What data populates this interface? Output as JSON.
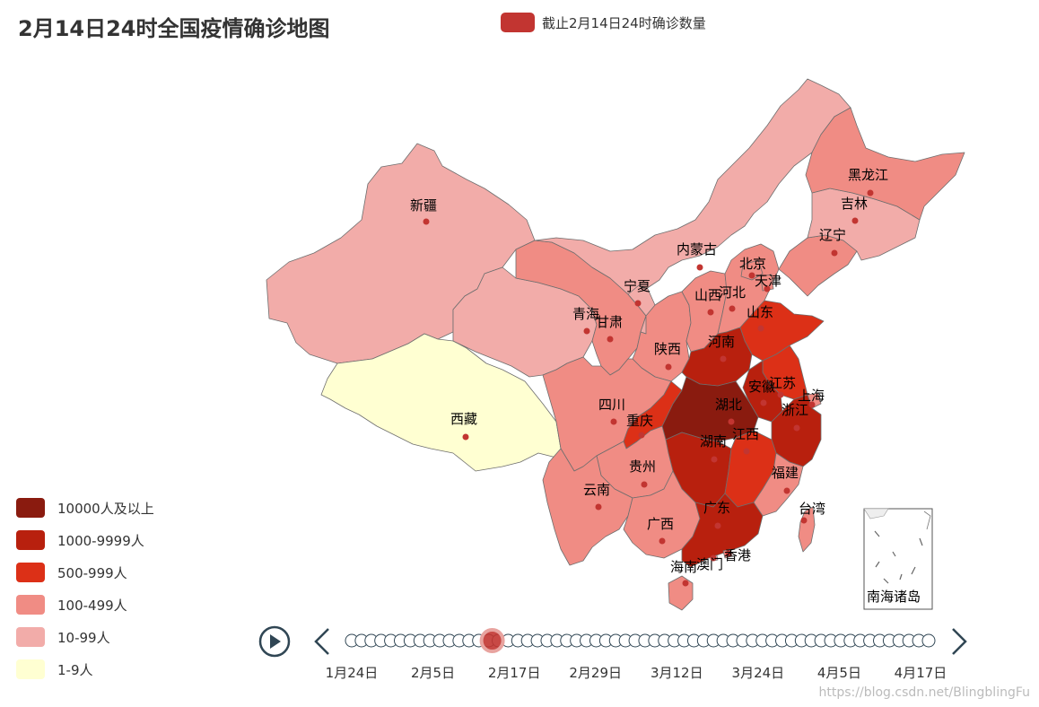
{
  "title": "2月14日24时全国疫情确诊地图",
  "series_legend": {
    "label": "截止2月14日24时确诊数量",
    "color": "#c23531"
  },
  "visual_map": [
    {
      "label": "10000人及以上",
      "color": "#8a1b0f"
    },
    {
      "label": "1000-9999人",
      "color": "#b8200e"
    },
    {
      "label": "500-999人",
      "color": "#dc3017"
    },
    {
      "label": "100-499人",
      "color": "#f08c84"
    },
    {
      "label": "10-99人",
      "color": "#f2aca9"
    },
    {
      "label": "1-9人",
      "color": "#ffffd2"
    }
  ],
  "provinces": [
    {
      "id": "xinjiang",
      "name": "新疆",
      "level": 4
    },
    {
      "id": "xizang",
      "name": "西藏",
      "level": 5
    },
    {
      "id": "qinghai",
      "name": "青海",
      "level": 4
    },
    {
      "id": "gansu",
      "name": "甘肃",
      "level": 3
    },
    {
      "id": "neimenggu",
      "name": "内蒙古",
      "level": 4
    },
    {
      "id": "ningxia",
      "name": "宁夏",
      "level": 4
    },
    {
      "id": "shaanxi",
      "name": "陕西",
      "level": 3
    },
    {
      "id": "shanxi",
      "name": "山西",
      "level": 3
    },
    {
      "id": "hebei",
      "name": "河北",
      "level": 3
    },
    {
      "id": "beijing",
      "name": "北京",
      "level": 3
    },
    {
      "id": "tianjin",
      "name": "天津",
      "level": 3
    },
    {
      "id": "liaoning",
      "name": "辽宁",
      "level": 3
    },
    {
      "id": "jilin",
      "name": "吉林",
      "level": 4
    },
    {
      "id": "heilongjiang",
      "name": "黑龙江",
      "level": 3
    },
    {
      "id": "shandong",
      "name": "山东",
      "level": 2
    },
    {
      "id": "henan",
      "name": "河南",
      "level": 1
    },
    {
      "id": "jiangsu",
      "name": "江苏",
      "level": 2
    },
    {
      "id": "anhui",
      "name": "安徽",
      "level": 1
    },
    {
      "id": "shanghai",
      "name": "上海",
      "level": 3
    },
    {
      "id": "zhejiang",
      "name": "浙江",
      "level": 1
    },
    {
      "id": "hubei",
      "name": "湖北",
      "level": 0
    },
    {
      "id": "sichuan",
      "name": "四川",
      "level": 3
    },
    {
      "id": "chongqing",
      "name": "重庆",
      "level": 2
    },
    {
      "id": "hunan",
      "name": "湖南",
      "level": 1
    },
    {
      "id": "jiangxi",
      "name": "江西",
      "level": 2
    },
    {
      "id": "fujian",
      "name": "福建",
      "level": 3
    },
    {
      "id": "guizhou",
      "name": "贵州",
      "level": 3
    },
    {
      "id": "yunnan",
      "name": "云南",
      "level": 3
    },
    {
      "id": "guangxi",
      "name": "广西",
      "level": 3
    },
    {
      "id": "guangdong",
      "name": "广东",
      "level": 1
    },
    {
      "id": "hainan",
      "name": "海南",
      "level": 3
    },
    {
      "id": "taiwan",
      "name": "台湾",
      "level": 3
    },
    {
      "id": "xianggang",
      "name": "香港",
      "level": 3
    },
    {
      "id": "aomen",
      "name": "澳门",
      "level": 4
    }
  ],
  "inset_label": "南海诸岛",
  "timeline": {
    "labels": [
      "1月24日",
      "2月5日",
      "2月17日",
      "2月29日",
      "3月12日",
      "3月24日",
      "4月5日",
      "4月17日"
    ],
    "current_date_fraction": 0.2
  },
  "watermark": "https://blog.csdn.net/BlingblingFu"
}
